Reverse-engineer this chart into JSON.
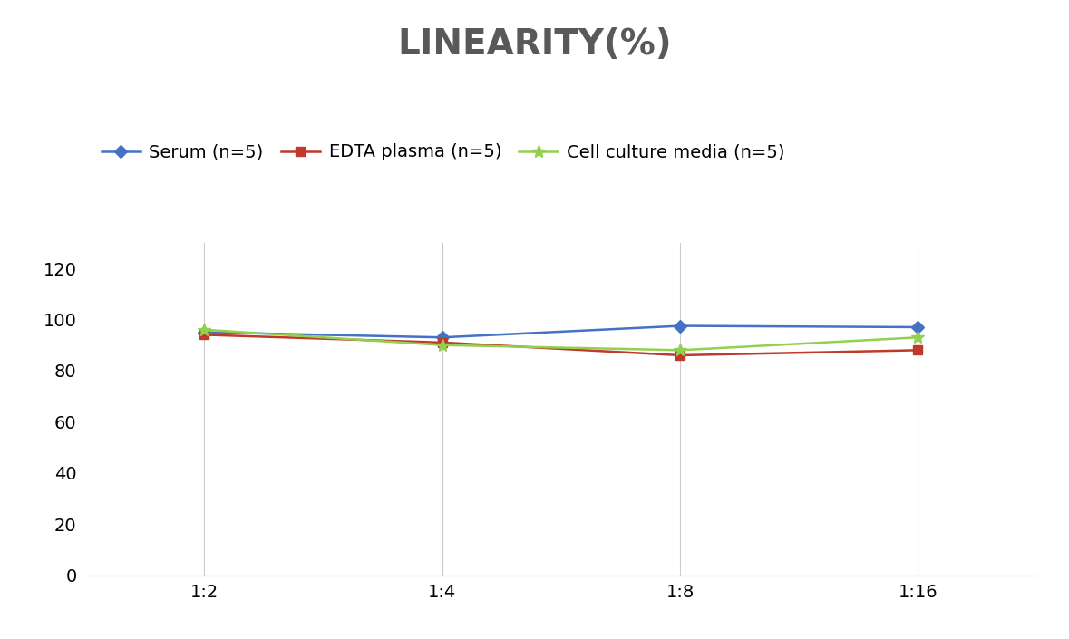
{
  "title": "LINEARITY(%)",
  "x_labels": [
    "1:2",
    "1:4",
    "1:8",
    "1:16"
  ],
  "x_positions": [
    0,
    1,
    2,
    3
  ],
  "series": [
    {
      "label": "Serum (n=5)",
      "values": [
        95.0,
        93.0,
        97.5,
        97.0
      ],
      "color": "#4472C4",
      "marker": "D",
      "markersize": 7,
      "linewidth": 1.8
    },
    {
      "label": "EDTA plasma (n=5)",
      "values": [
        94.0,
        91.0,
        86.0,
        88.0
      ],
      "color": "#C0392B",
      "marker": "s",
      "markersize": 7,
      "linewidth": 1.8
    },
    {
      "label": "Cell culture media (n=5)",
      "values": [
        96.0,
        90.0,
        88.0,
        93.0
      ],
      "color": "#92D050",
      "marker": "*",
      "markersize": 10,
      "linewidth": 1.8
    }
  ],
  "ylim": [
    0,
    130
  ],
  "yticks": [
    0,
    20,
    40,
    60,
    80,
    100,
    120
  ],
  "background_color": "#FFFFFF",
  "title_fontsize": 28,
  "tick_fontsize": 14,
  "legend_fontsize": 14,
  "title_color": "#595959"
}
